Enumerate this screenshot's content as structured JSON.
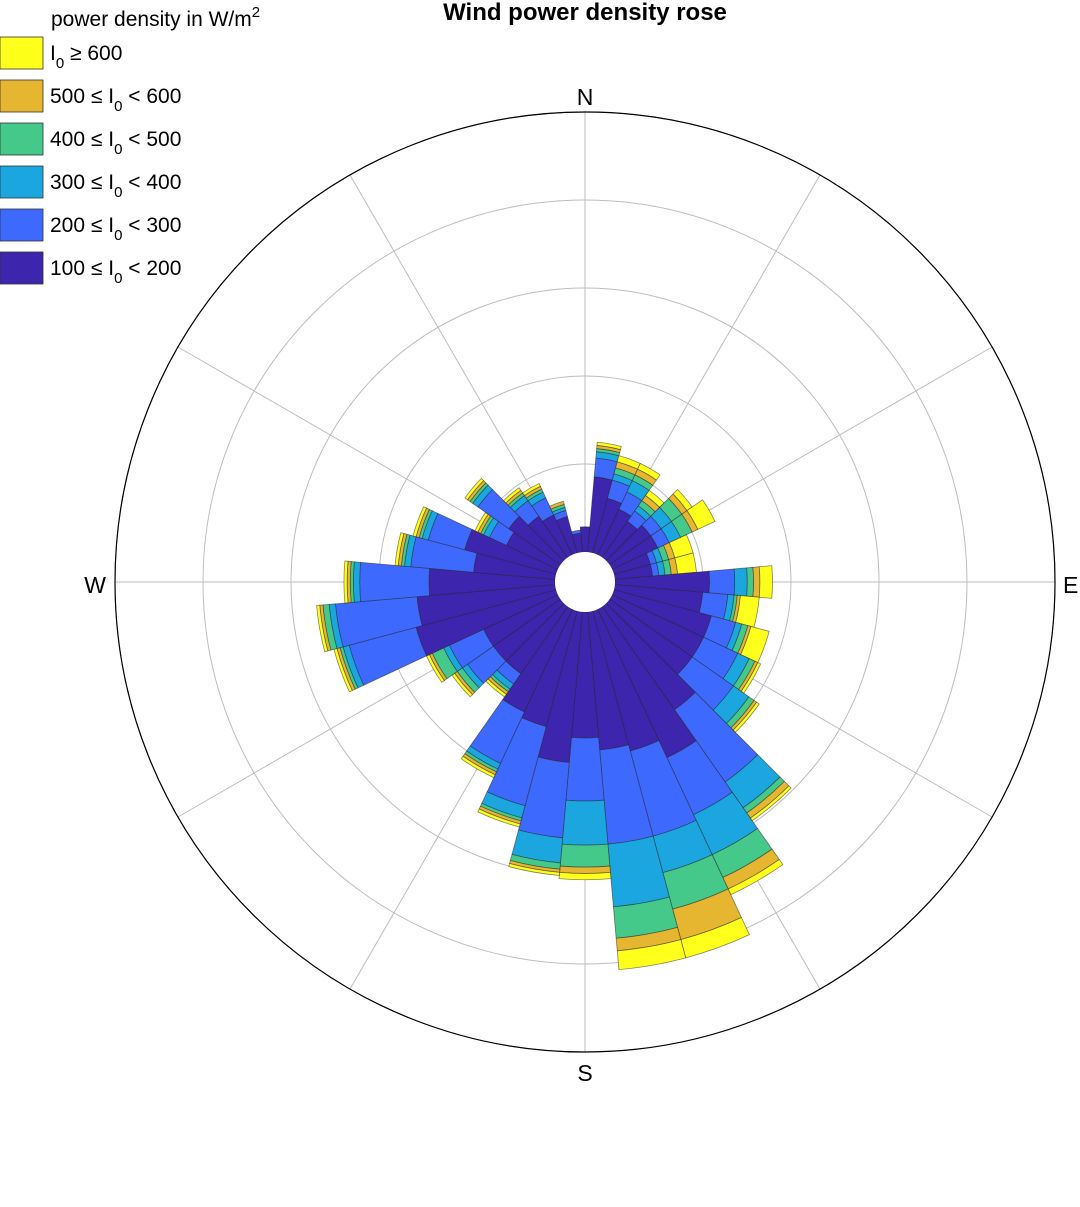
{
  "chart_data": {
    "type": "polar-stacked-bar",
    "title": "Wind power density rose",
    "direction_labels": [
      "N",
      "E",
      "S",
      "W"
    ],
    "sector_count": 36,
    "sector_width_deg": 10,
    "legend": {
      "title": "power density  in W/m",
      "title_sup": "2",
      "placement": "top-left",
      "entries": [
        {
          "pre": "",
          "post": " ≥ 600",
          "color": "#ffff1c"
        },
        {
          "pre": "500 ≤ ",
          "post": " < 600",
          "color": "#e6b631"
        },
        {
          "pre": "400 ≤ ",
          "post": " < 500",
          "color": "#44c98a"
        },
        {
          "pre": "300 ≤ ",
          "post": " < 400",
          "color": "#1ba6e0"
        },
        {
          "pre": "200 ≤ ",
          "post": " < 300",
          "color": "#3e69ff"
        },
        {
          "pre": "100 ≤ ",
          "post": " < 200",
          "color": "#3d25ae"
        }
      ],
      "symbol_main": "I",
      "symbol_sub": "0"
    },
    "bin_colors": [
      "#3d25ae",
      "#3e69ff",
      "#1ba6e0",
      "#44c98a",
      "#e6b631",
      "#ffff1c"
    ],
    "bin_names": [
      "100-200",
      "200-300",
      "300-400",
      "400-500",
      "500-600",
      ">=600"
    ],
    "frequency_ring_count": 5,
    "sectors": [
      {
        "dir": 0,
        "stack": [
          0.4,
          0.0,
          0.0,
          0.0,
          0.0,
          0.0
        ]
      },
      {
        "dir": 10,
        "stack": [
          1.2,
          0.3,
          0.1,
          0.05,
          0.05,
          0.05
        ]
      },
      {
        "dir": 20,
        "stack": [
          0.9,
          0.3,
          0.1,
          0.1,
          0.1,
          0.1
        ]
      },
      {
        "dir": 30,
        "stack": [
          0.8,
          0.3,
          0.2,
          0.1,
          0.1,
          0.1
        ]
      },
      {
        "dir": 40,
        "stack": [
          0.7,
          0.2,
          0.1,
          0.1,
          0.1,
          0.1
        ]
      },
      {
        "dir": 50,
        "stack": [
          0.8,
          0.2,
          0.2,
          0.2,
          0.1,
          0.1
        ]
      },
      {
        "dir": 60,
        "stack": [
          0.8,
          0.2,
          0.2,
          0.2,
          0.1,
          0.3
        ]
      },
      {
        "dir": 70,
        "stack": [
          0.6,
          0.1,
          0.1,
          0.1,
          0.1,
          0.3
        ]
      },
      {
        "dir": 80,
        "stack": [
          0.6,
          0.1,
          0.1,
          0.1,
          0.1,
          0.3
        ]
      },
      {
        "dir": 90,
        "stack": [
          1.5,
          0.4,
          0.2,
          0.1,
          0.1,
          0.2
        ]
      },
      {
        "dir": 100,
        "stack": [
          1.4,
          0.4,
          0.1,
          0.05,
          0.05,
          0.3
        ]
      },
      {
        "dir": 110,
        "stack": [
          1.6,
          0.4,
          0.1,
          0.1,
          0.05,
          0.3
        ]
      },
      {
        "dir": 120,
        "stack": [
          1.6,
          0.6,
          0.2,
          0.1,
          0.05,
          0.05
        ]
      },
      {
        "dir": 130,
        "stack": [
          1.6,
          0.8,
          0.3,
          0.1,
          0.05,
          0.05
        ]
      },
      {
        "dir": 140,
        "stack": [
          2.0,
          1.4,
          0.5,
          0.1,
          0.1,
          0.05
        ]
      },
      {
        "dir": 150,
        "stack": [
          2.6,
          1.0,
          0.7,
          0.4,
          0.2,
          0.1
        ]
      },
      {
        "dir": 160,
        "stack": [
          2.3,
          1.4,
          0.6,
          0.6,
          0.5,
          0.3
        ]
      },
      {
        "dir": 170,
        "stack": [
          2.2,
          1.5,
          1.0,
          0.5,
          0.2,
          0.3
        ]
      },
      {
        "dir": 180,
        "stack": [
          2.0,
          1.0,
          0.7,
          0.35,
          0.1,
          0.1
        ]
      },
      {
        "dir": 190,
        "stack": [
          2.4,
          1.2,
          0.4,
          0.1,
          0.05,
          0.05
        ]
      },
      {
        "dir": 200,
        "stack": [
          1.9,
          1.3,
          0.2,
          0.05,
          0.05,
          0.05
        ]
      },
      {
        "dir": 210,
        "stack": [
          1.8,
          0.9,
          0.1,
          0.05,
          0.05,
          0.05
        ]
      },
      {
        "dir": 220,
        "stack": [
          1.3,
          0.2,
          0.1,
          0.05,
          0.05,
          0.05
        ]
      },
      {
        "dir": 230,
        "stack": [
          1.3,
          0.5,
          0.1,
          0.1,
          0.05,
          0.05
        ]
      },
      {
        "dir": 240,
        "stack": [
          1.3,
          0.6,
          0.1,
          0.2,
          0.05,
          0.05
        ]
      },
      {
        "dir": 250,
        "stack": [
          2.3,
          1.1,
          0.1,
          0.05,
          0.05,
          0.05
        ]
      },
      {
        "dir": 260,
        "stack": [
          2.2,
          1.3,
          0.1,
          0.1,
          0.05,
          0.05
        ]
      },
      {
        "dir": 270,
        "stack": [
          2.0,
          1.1,
          0.1,
          0.05,
          0.05,
          0.05
        ]
      },
      {
        "dir": 280,
        "stack": [
          1.3,
          1.0,
          0.1,
          0.05,
          0.05,
          0.05
        ]
      },
      {
        "dir": 290,
        "stack": [
          1.5,
          0.6,
          0.1,
          0.05,
          0.05,
          0.05
        ]
      },
      {
        "dir": 300,
        "stack": [
          0.9,
          0.3,
          0.1,
          0.05,
          0.05,
          0.05
        ]
      },
      {
        "dir": 310,
        "stack": [
          1.0,
          0.6,
          0.1,
          0.05,
          0.05,
          0.05
        ]
      },
      {
        "dir": 320,
        "stack": [
          0.8,
          0.3,
          0.1,
          0.05,
          0.05,
          0.05
        ]
      },
      {
        "dir": 330,
        "stack": [
          0.7,
          0.3,
          0.1,
          0.05,
          0.05,
          0.05
        ]
      },
      {
        "dir": 340,
        "stack": [
          0.6,
          0.1,
          0.05,
          0.05,
          0.05,
          0.0
        ]
      },
      {
        "dir": 350,
        "stack": [
          0.3,
          0.05,
          0.0,
          0.0,
          0.0,
          0.0
        ]
      }
    ]
  }
}
